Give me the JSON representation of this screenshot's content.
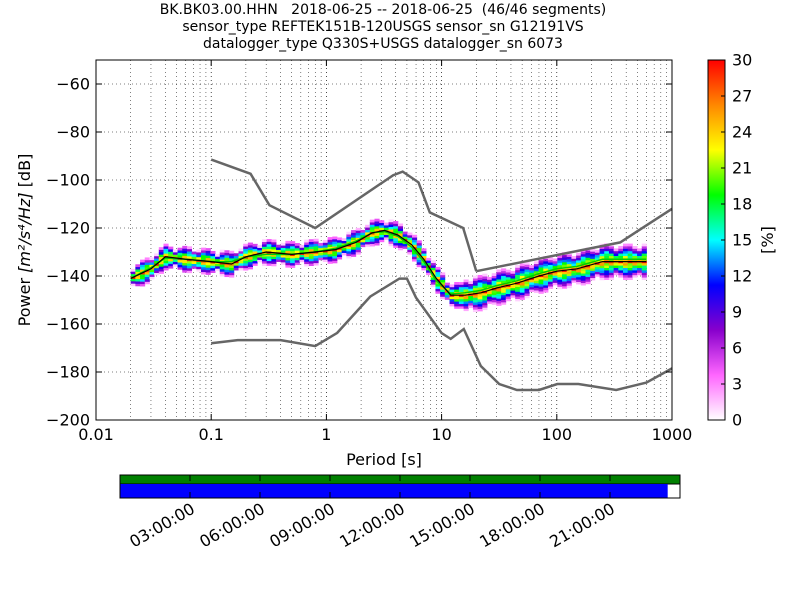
{
  "title_lines": [
    "BK.BK03.00.HHN   2018-06-25 -- 2018-06-25  (46/46 segments)",
    "sensor_type REFTEK151B-120USGS sensor_sn G12191VS",
    "datalogger_type Q330S+USGS datalogger_sn 6073"
  ],
  "chart_data": {
    "type": "heatmap",
    "xlabel": "Period [s]",
    "ylabel_prefix": "Power ",
    "ylabel_units": "[m²/s⁴/Hz]",
    "ylabel_suffix": " [dB]",
    "x_scale": "log",
    "xlim": [
      0.01,
      1000
    ],
    "ylim": [
      -200,
      -50
    ],
    "x_tick_labels": [
      "0.01",
      "0.1",
      "1",
      "10",
      "100",
      "1000"
    ],
    "y_ticks": [
      -60,
      -80,
      -100,
      -120,
      -140,
      -160,
      -180,
      -200
    ],
    "grid": "dotted",
    "colorbar": {
      "label": "[%]",
      "range": [
        0,
        30
      ],
      "ticks": [
        0,
        3,
        6,
        9,
        12,
        15,
        18,
        21,
        24,
        27,
        30
      ],
      "colors": [
        "#ffffff",
        "#ff66ff",
        "#8800cc",
        "#0000ff",
        "#00ffff",
        "#00ff00",
        "#ffff00",
        "#ff8800",
        "#ff0000"
      ]
    },
    "noise_models": {
      "NHNM": {
        "x": [
          0.1,
          0.22,
          0.32,
          0.8,
          3.8,
          4.6,
          6.3,
          7.9,
          15.4,
          20
        ],
        "y": [
          -91.5,
          -97.4,
          -110.5,
          -120,
          -98,
          -96.5,
          -101,
          -113.5,
          -120,
          -138
        ],
        "grey_x": [
          20,
          354.8,
          1000
        ],
        "grey_y": [
          -138,
          -126,
          -112
        ]
      },
      "NLNM": {
        "x": [
          0.1,
          0.17,
          0.4,
          0.8,
          1.24,
          2.4,
          4.3,
          5,
          6,
          10,
          12,
          15.6,
          21.9,
          31.6,
          45,
          70,
          101,
          154,
          328,
          600,
          1000
        ],
        "y": [
          -168,
          -166.7,
          -166.7,
          -169.2,
          -163.7,
          -148.6,
          -141.1,
          -141.1,
          -149,
          -163.8,
          -166.2,
          -162.1,
          -177.5,
          -185,
          -187.5,
          -187.5,
          -185,
          -185,
          -187.5,
          -184.4,
          -178.5
        ]
      }
    },
    "mode": {
      "x": [
        0.02,
        0.03,
        0.04,
        0.06,
        0.1,
        0.15,
        0.2,
        0.3,
        0.5,
        0.8,
        1.2,
        1.8,
        2.5,
        3.2,
        4.2,
        5.5,
        7,
        9,
        12,
        16,
        22,
        30,
        45,
        70,
        100,
        150,
        250,
        400,
        600
      ],
      "y": [
        -141,
        -137,
        -132,
        -133,
        -134,
        -135,
        -132,
        -130,
        -131,
        -130,
        -129,
        -126,
        -122,
        -121,
        -123,
        -127,
        -133,
        -141,
        -148,
        -148,
        -147,
        -145,
        -143,
        -140,
        -138,
        -137,
        -134,
        -134,
        -134
      ]
    },
    "mean": {
      "x": [
        0.02,
        0.03,
        0.04,
        0.06,
        0.1,
        0.15,
        0.2,
        0.3,
        0.5,
        0.8,
        1.2,
        1.8,
        2.5,
        3.2,
        4.2,
        5.5,
        7,
        9,
        12,
        16,
        22,
        30,
        45,
        70,
        100,
        150,
        250,
        400,
        600
      ],
      "y": [
        -141,
        -136.5,
        -132.5,
        -133,
        -134,
        -134,
        -132,
        -131,
        -131,
        -130,
        -128.5,
        -125.5,
        -122,
        -121.5,
        -123.5,
        -128,
        -134,
        -142,
        -147.5,
        -147,
        -146,
        -144,
        -142,
        -139,
        -137,
        -136,
        -133,
        -133,
        -133
      ]
    }
  },
  "timeline": {
    "tick_labels": [
      "03:00:00",
      "06:00:00",
      "09:00:00",
      "12:00:00",
      "15:00:00",
      "18:00:00",
      "21:00:00"
    ],
    "colors": {
      "top_bar": "#008000",
      "bottom_bar": "#0000ff"
    },
    "coverage_fraction": 0.978
  }
}
